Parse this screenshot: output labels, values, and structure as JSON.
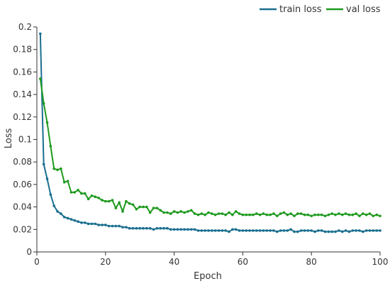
{
  "chart_data": {
    "type": "line",
    "xlabel": "Epoch",
    "ylabel": "Loss",
    "xlim": [
      0,
      100
    ],
    "ylim": [
      0,
      0.2
    ],
    "x_ticks": [
      0,
      20,
      40,
      60,
      80,
      100
    ],
    "y_ticks": [
      0,
      0.02,
      0.04,
      0.06,
      0.08,
      0.1,
      0.12,
      0.14,
      0.16,
      0.18,
      0.2
    ],
    "x_tick_labels": [
      "0",
      "20",
      "40",
      "60",
      "80",
      "100"
    ],
    "y_tick_labels": [
      "0",
      "0.02",
      "0.04",
      "0.06",
      "0.08",
      "0.1",
      "0.12",
      "0.14",
      "0.16",
      "0.18",
      "0.2"
    ],
    "grid": false,
    "legend_position": "top-right",
    "series": [
      {
        "name": "train loss",
        "color": "#1a6f8f",
        "x": [
          1,
          2,
          3,
          4,
          5,
          6,
          7,
          8,
          9,
          10,
          11,
          12,
          13,
          14,
          15,
          16,
          17,
          18,
          19,
          20,
          21,
          22,
          23,
          24,
          25,
          26,
          27,
          28,
          29,
          30,
          31,
          32,
          33,
          34,
          35,
          36,
          37,
          38,
          39,
          40,
          41,
          42,
          43,
          44,
          45,
          46,
          47,
          48,
          49,
          50,
          51,
          52,
          53,
          54,
          55,
          56,
          57,
          58,
          59,
          60,
          61,
          62,
          63,
          64,
          65,
          66,
          67,
          68,
          69,
          70,
          71,
          72,
          73,
          74,
          75,
          76,
          77,
          78,
          79,
          80,
          81,
          82,
          83,
          84,
          85,
          86,
          87,
          88,
          89,
          90,
          91,
          92,
          93,
          94,
          95,
          96,
          97,
          98,
          99,
          100
        ],
        "values": [
          0.194,
          0.078,
          0.065,
          0.051,
          0.041,
          0.036,
          0.034,
          0.031,
          0.03,
          0.029,
          0.028,
          0.027,
          0.026,
          0.026,
          0.025,
          0.025,
          0.025,
          0.024,
          0.024,
          0.024,
          0.023,
          0.023,
          0.023,
          0.023,
          0.022,
          0.022,
          0.021,
          0.021,
          0.021,
          0.021,
          0.021,
          0.021,
          0.021,
          0.02,
          0.021,
          0.021,
          0.021,
          0.021,
          0.02,
          0.02,
          0.02,
          0.02,
          0.02,
          0.02,
          0.02,
          0.02,
          0.019,
          0.019,
          0.019,
          0.019,
          0.019,
          0.019,
          0.019,
          0.019,
          0.019,
          0.018,
          0.02,
          0.02,
          0.019,
          0.019,
          0.019,
          0.019,
          0.019,
          0.019,
          0.019,
          0.019,
          0.019,
          0.019,
          0.019,
          0.018,
          0.019,
          0.019,
          0.019,
          0.02,
          0.018,
          0.018,
          0.019,
          0.019,
          0.019,
          0.019,
          0.018,
          0.019,
          0.019,
          0.018,
          0.018,
          0.018,
          0.018,
          0.019,
          0.018,
          0.019,
          0.018,
          0.019,
          0.019,
          0.019,
          0.018,
          0.019,
          0.019,
          0.019,
          0.019,
          0.019
        ]
      },
      {
        "name": "val loss",
        "color": "#1e9a1e",
        "x": [
          1,
          2,
          3,
          4,
          5,
          6,
          7,
          8,
          9,
          10,
          11,
          12,
          13,
          14,
          15,
          16,
          17,
          18,
          19,
          20,
          21,
          22,
          23,
          24,
          25,
          26,
          27,
          28,
          29,
          30,
          31,
          32,
          33,
          34,
          35,
          36,
          37,
          38,
          39,
          40,
          41,
          42,
          43,
          44,
          45,
          46,
          47,
          48,
          49,
          50,
          51,
          52,
          53,
          54,
          55,
          56,
          57,
          58,
          59,
          60,
          61,
          62,
          63,
          64,
          65,
          66,
          67,
          68,
          69,
          70,
          71,
          72,
          73,
          74,
          75,
          76,
          77,
          78,
          79,
          80,
          81,
          82,
          83,
          84,
          85,
          86,
          87,
          88,
          89,
          90,
          91,
          92,
          93,
          94,
          95,
          96,
          97,
          98,
          99,
          100
        ],
        "values": [
          0.154,
          0.132,
          0.115,
          0.094,
          0.074,
          0.073,
          0.074,
          0.062,
          0.063,
          0.053,
          0.053,
          0.055,
          0.052,
          0.052,
          0.047,
          0.05,
          0.049,
          0.048,
          0.046,
          0.045,
          0.045,
          0.046,
          0.039,
          0.044,
          0.036,
          0.045,
          0.043,
          0.042,
          0.038,
          0.04,
          0.04,
          0.04,
          0.035,
          0.039,
          0.039,
          0.037,
          0.035,
          0.035,
          0.034,
          0.036,
          0.035,
          0.036,
          0.035,
          0.036,
          0.037,
          0.034,
          0.033,
          0.034,
          0.033,
          0.035,
          0.034,
          0.033,
          0.034,
          0.034,
          0.033,
          0.035,
          0.033,
          0.036,
          0.034,
          0.033,
          0.033,
          0.033,
          0.033,
          0.034,
          0.033,
          0.034,
          0.033,
          0.033,
          0.034,
          0.032,
          0.034,
          0.035,
          0.033,
          0.034,
          0.032,
          0.034,
          0.034,
          0.033,
          0.033,
          0.032,
          0.033,
          0.033,
          0.033,
          0.032,
          0.033,
          0.034,
          0.033,
          0.034,
          0.033,
          0.034,
          0.033,
          0.033,
          0.034,
          0.032,
          0.034,
          0.033,
          0.034,
          0.032,
          0.033,
          0.032
        ]
      }
    ]
  }
}
